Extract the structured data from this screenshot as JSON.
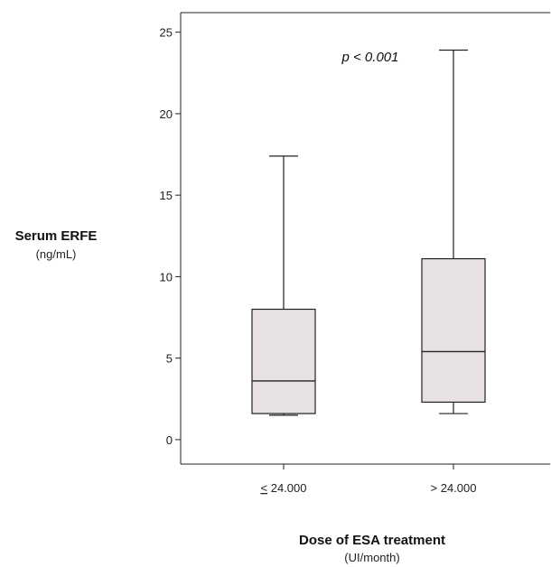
{
  "chart_data": {
    "type": "box",
    "ylabel": "Serum ERFE",
    "ylabel_unit": "(ng/mL)",
    "xlabel": "Dose of ESA treatment",
    "xlabel_unit": "(UI/month)",
    "annotation": "p < 0.001",
    "ylim": [
      -1.5,
      26.2
    ],
    "yticks": [
      0,
      5,
      10,
      15,
      20,
      25
    ],
    "grid": false,
    "box_fill": "#e8e2e6",
    "categories": [
      {
        "label": "≤ 24.000",
        "underline_symbol": "<",
        "suffix": " 24.000"
      },
      {
        "label": "> 24.000"
      }
    ],
    "boxes": [
      {
        "min": 1.5,
        "q1": 1.6,
        "median": 3.6,
        "q3": 8.0,
        "max": 17.4
      },
      {
        "min": 1.6,
        "q1": 2.3,
        "median": 5.4,
        "q3": 11.1,
        "max": 23.9
      }
    ]
  }
}
